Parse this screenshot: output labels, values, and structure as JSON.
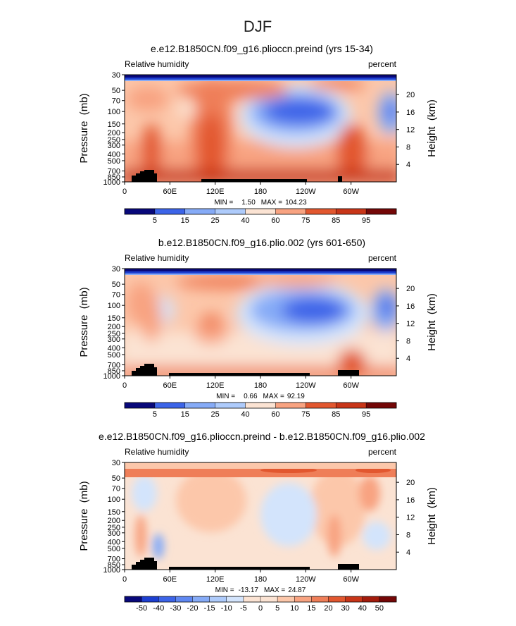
{
  "page_title": "DJF",
  "chart_data": [
    {
      "type": "heatmap",
      "title": "e.e12.B1850CN.f09_g16.plioccn.preind (yrs 15-34)",
      "left_label": "Relative humidity",
      "right_label": "percent",
      "ylabel": "Pressure  (mb)",
      "ylabel_right": "Height  (km)",
      "x_ticks": [
        "0",
        "60E",
        "120E",
        "180",
        "120W",
        "60W"
      ],
      "y_ticks": [
        "30",
        "50",
        "70",
        "100",
        "150",
        "200",
        "250",
        "300",
        "400",
        "500",
        "700",
        "850",
        "1000"
      ],
      "height_ticks": [
        "20",
        "16",
        "12",
        "8",
        "4"
      ],
      "min_label": "MIN =",
      "min_value": "1.50",
      "max_label": "MAX =",
      "max_value": "104.23",
      "colorbar_labels": [
        "5",
        "15",
        "25",
        "40",
        "60",
        "75",
        "85",
        "95"
      ]
    },
    {
      "type": "heatmap",
      "title": "b.e12.B1850CN.f09_g16.plio.002 (yrs 601-650)",
      "left_label": "Relative humidity",
      "right_label": "percent",
      "ylabel": "Pressure  (mb)",
      "ylabel_right": "Height  (km)",
      "x_ticks": [
        "0",
        "60E",
        "120E",
        "180",
        "120W",
        "60W"
      ],
      "y_ticks": [
        "30",
        "50",
        "70",
        "100",
        "150",
        "200",
        "250",
        "300",
        "400",
        "500",
        "700",
        "850",
        "1000"
      ],
      "height_ticks": [
        "20",
        "16",
        "12",
        "8",
        "4"
      ],
      "min_label": "MIN =",
      "min_value": "0.66",
      "max_label": "MAX =",
      "max_value": "92.19",
      "colorbar_labels": [
        "5",
        "15",
        "25",
        "40",
        "60",
        "75",
        "85",
        "95"
      ]
    },
    {
      "type": "heatmap",
      "title": "e.e12.B1850CN.f09_g16.plioccn.preind - b.e12.B1850CN.f09_g16.plio.002",
      "left_label": "Relative humidity",
      "right_label": "percent",
      "ylabel": "Pressure  (mb)",
      "ylabel_right": "Height  (km)",
      "x_ticks": [
        "0",
        "60E",
        "120E",
        "180",
        "120W",
        "60W"
      ],
      "y_ticks": [
        "30",
        "50",
        "70",
        "100",
        "150",
        "200",
        "250",
        "300",
        "400",
        "500",
        "700",
        "850",
        "1000"
      ],
      "height_ticks": [
        "20",
        "16",
        "12",
        "8",
        "4"
      ],
      "min_label": "MIN =",
      "min_value": "-13.17",
      "max_label": "MAX =",
      "max_value": "24.87",
      "colorbar_labels": [
        "-50",
        "-40",
        "-30",
        "-20",
        "-15",
        "-10",
        "-5",
        "0",
        "5",
        "10",
        "15",
        "20",
        "30",
        "40",
        "50"
      ]
    }
  ],
  "colors": {
    "scale": [
      "#08087a",
      "#1d3fd1",
      "#3c64e8",
      "#5f88f2",
      "#86abf7",
      "#aecbfb",
      "#d3e4fc",
      "#fbe3d3",
      "#fcc7aa",
      "#f8a381",
      "#ef7e58",
      "#e2572f",
      "#c83518",
      "#a31b0c",
      "#740707"
    ],
    "text": "#000000",
    "land": "#000000"
  }
}
